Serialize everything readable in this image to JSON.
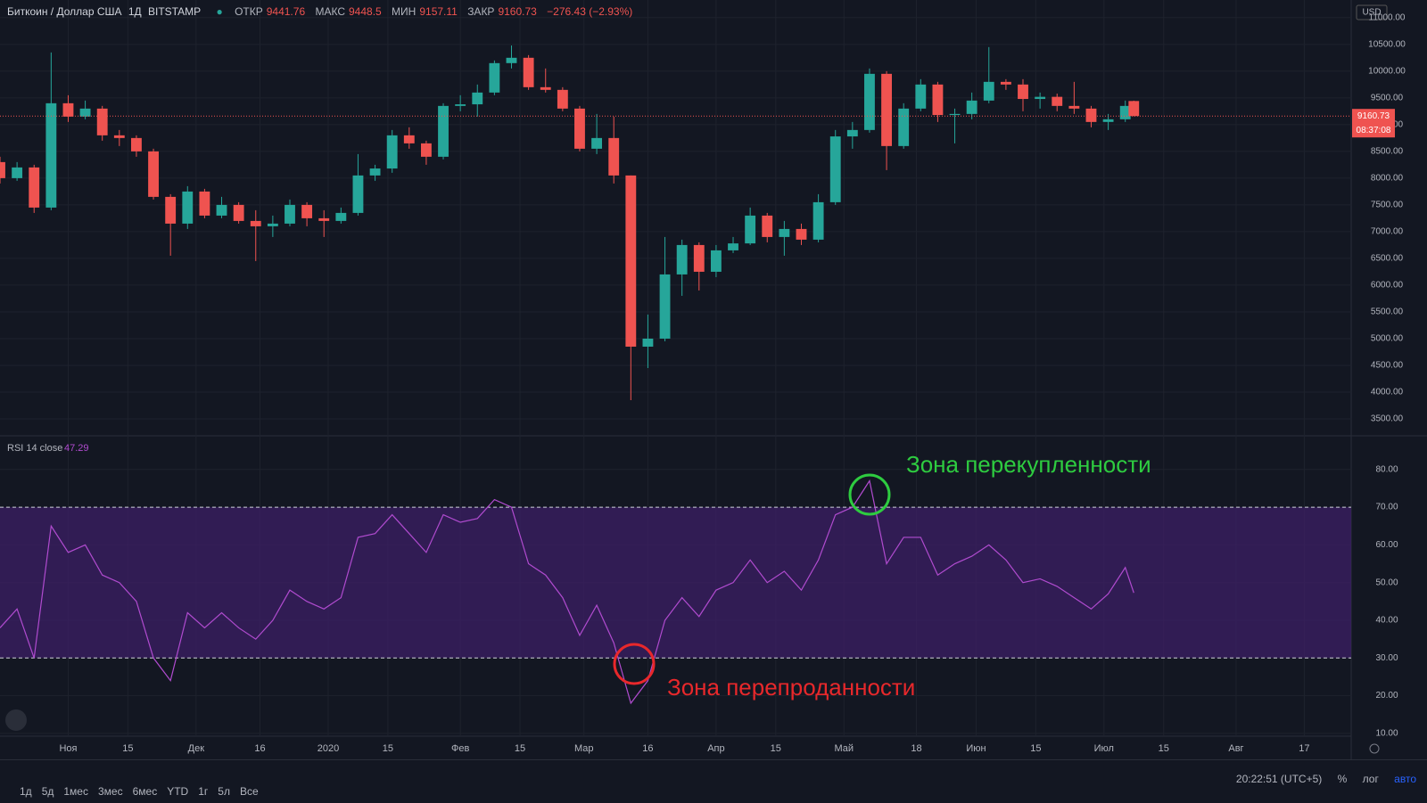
{
  "header": {
    "symbol": "Биткоин / Доллар США",
    "interval": "1Д",
    "exchange": "BITSTAMP",
    "open_label": "ОТКР",
    "high_label": "МАКС",
    "low_label": "МИН",
    "close_label": "ЗАКР",
    "change": "−276.43 (−2.93%)"
  },
  "chart_data": [
    {
      "type": "candlestick",
      "currency": "USD",
      "countdown": "08:37:08",
      "up_color": "#26a69a",
      "down_color": "#ef5350",
      "xlim": [
        "2019-10-16",
        "2020-08-28"
      ],
      "ylim": [
        3200,
        11330
      ],
      "yticks": [
        {
          "value": 3500,
          "label": "3500.00"
        },
        {
          "value": 4000,
          "label": "4000.00"
        },
        {
          "value": 4500,
          "label": "4500.00"
        },
        {
          "value": 5000,
          "label": "5000.00"
        },
        {
          "value": 5500,
          "label": "5500.00"
        },
        {
          "value": 6000,
          "label": "6000.00"
        },
        {
          "value": 6500,
          "label": "6500.00"
        },
        {
          "value": 7000,
          "label": "7000.00"
        },
        {
          "value": 7500,
          "label": "7500.00"
        },
        {
          "value": 8000,
          "label": "8000.00"
        },
        {
          "value": 8500,
          "label": "8500.00"
        },
        {
          "value": 9000,
          "label": "9000.00"
        },
        {
          "value": 9500,
          "label": "9500.00"
        },
        {
          "value": 10000,
          "label": "10000.00"
        },
        {
          "value": 10500,
          "label": "10500.00"
        },
        {
          "value": 11000,
          "label": "11000.00"
        }
      ],
      "x": [
        "2019-10-16",
        "2019-10-20",
        "2019-10-24",
        "2019-10-28",
        "2019-11-01",
        "2019-11-05",
        "2019-11-09",
        "2019-11-13",
        "2019-11-17",
        "2019-11-21",
        "2019-11-25",
        "2019-11-29",
        "2019-12-03",
        "2019-12-07",
        "2019-12-11",
        "2019-12-15",
        "2019-12-19",
        "2019-12-23",
        "2019-12-27",
        "2019-12-31",
        "2020-01-04",
        "2020-01-08",
        "2020-01-12",
        "2020-01-16",
        "2020-01-20",
        "2020-01-24",
        "2020-01-28",
        "2020-02-01",
        "2020-02-05",
        "2020-02-09",
        "2020-02-13",
        "2020-02-17",
        "2020-02-21",
        "2020-02-25",
        "2020-02-29",
        "2020-03-04",
        "2020-03-08",
        "2020-03-12",
        "2020-03-16",
        "2020-03-20",
        "2020-03-24",
        "2020-03-28",
        "2020-04-01",
        "2020-04-05",
        "2020-04-09",
        "2020-04-13",
        "2020-04-17",
        "2020-04-21",
        "2020-04-25",
        "2020-04-29",
        "2020-05-03",
        "2020-05-07",
        "2020-05-11",
        "2020-05-15",
        "2020-05-19",
        "2020-05-23",
        "2020-05-27",
        "2020-05-31",
        "2020-06-04",
        "2020-06-08",
        "2020-06-12",
        "2020-06-16",
        "2020-06-20",
        "2020-06-24",
        "2020-06-28",
        "2020-07-02",
        "2020-07-06",
        "2020-07-08"
      ],
      "open": [
        8300,
        8000,
        8200,
        7450,
        9400,
        9150,
        9300,
        8800,
        8750,
        8500,
        7650,
        7150,
        7750,
        7300,
        7500,
        7200,
        7100,
        7150,
        7500,
        7250,
        7200,
        7350,
        8050,
        8180,
        8800,
        8650,
        8400,
        9350,
        9380,
        9600,
        10150,
        10250,
        9700,
        9650,
        9300,
        8550,
        8750,
        8050,
        4850,
        5000,
        6200,
        6750,
        6250,
        6650,
        6780,
        7300,
        6900,
        7050,
        6850,
        7550,
        8780,
        8900,
        9950,
        8600,
        9300,
        9750,
        9180,
        9200,
        9450,
        9800,
        9750,
        9480,
        9520,
        9350,
        9300,
        9050,
        9100,
        9441.76
      ],
      "high": [
        8400,
        8300,
        8250,
        10350,
        9550,
        9450,
        9350,
        8900,
        8800,
        8550,
        7700,
        7850,
        7800,
        7650,
        7550,
        7400,
        7300,
        7600,
        7550,
        7400,
        7450,
        8450,
        8250,
        8900,
        8950,
        8700,
        9400,
        9550,
        9750,
        10200,
        10480,
        10300,
        10050,
        9700,
        9350,
        9200,
        9150,
        8050,
        5450,
        6900,
        6850,
        6800,
        6750,
        6900,
        7450,
        7350,
        7200,
        7150,
        7700,
        8900,
        9050,
        10050,
        10000,
        9400,
        9850,
        9800,
        9300,
        9600,
        10450,
        9850,
        9850,
        9600,
        9580,
        9800,
        9350,
        9200,
        9450,
        9448.5
      ],
      "low": [
        7900,
        7950,
        7350,
        7400,
        9050,
        9100,
        8700,
        8600,
        8400,
        7600,
        6550,
        7050,
        7250,
        7250,
        7150,
        6450,
        6900,
        7100,
        7100,
        6900,
        7150,
        7300,
        7950,
        8100,
        8550,
        8250,
        8350,
        9250,
        9150,
        9550,
        10050,
        9650,
        9600,
        9250,
        8500,
        8450,
        7900,
        3850,
        4450,
        4950,
        5800,
        5900,
        6150,
        6600,
        6750,
        6800,
        6550,
        6750,
        6800,
        7500,
        8550,
        8850,
        8150,
        8550,
        9250,
        9050,
        8650,
        9100,
        9400,
        9650,
        9250,
        9300,
        9250,
        9200,
        8950,
        8900,
        9050,
        9157.11
      ],
      "close": [
        8000,
        8200,
        7450,
        9400,
        9150,
        9300,
        8800,
        8750,
        8500,
        7650,
        7150,
        7750,
        7300,
        7500,
        7200,
        7100,
        7150,
        7500,
        7250,
        7200,
        7350,
        8050,
        8180,
        8800,
        8650,
        8400,
        9350,
        9380,
        9600,
        10150,
        10250,
        9700,
        9650,
        9300,
        8550,
        8750,
        8050,
        4850,
        5000,
        6200,
        6750,
        6250,
        6650,
        6780,
        7300,
        6900,
        7050,
        6850,
        7550,
        8780,
        8900,
        9950,
        8600,
        9300,
        9750,
        9180,
        9200,
        9450,
        9800,
        9750,
        9480,
        9520,
        9350,
        9300,
        9050,
        9100,
        9350,
        9160.73
      ]
    },
    {
      "type": "line",
      "title": "RSI 14 close",
      "color": "#b04bcf",
      "band_color": "#3c1f66",
      "hlines": [
        30,
        70
      ],
      "xlim": [
        "2019-10-16",
        "2020-08-28"
      ],
      "ylim": [
        9.5,
        88.7
      ],
      "yticks": [
        {
          "value": 10,
          "label": "10.00"
        },
        {
          "value": 20,
          "label": "20.00"
        },
        {
          "value": 30,
          "label": "30.00"
        },
        {
          "value": 40,
          "label": "40.00"
        },
        {
          "value": 50,
          "label": "50.00"
        },
        {
          "value": 60,
          "label": "60.00"
        },
        {
          "value": 70,
          "label": "70.00"
        },
        {
          "value": 80,
          "label": "80.00"
        }
      ],
      "xticks": [
        {
          "value": "2019-11-01",
          "label": "Ноя"
        },
        {
          "value": "2019-11-15",
          "label": "15"
        },
        {
          "value": "2019-12-01",
          "label": "Дек"
        },
        {
          "value": "2019-12-16",
          "label": "16"
        },
        {
          "value": "2020-01-01",
          "label": "2020"
        },
        {
          "value": "2020-01-15",
          "label": "15"
        },
        {
          "value": "2020-02-01",
          "label": "Фев"
        },
        {
          "value": "2020-02-15",
          "label": "15"
        },
        {
          "value": "2020-03-01",
          "label": "Мар"
        },
        {
          "value": "2020-03-16",
          "label": "16"
        },
        {
          "value": "2020-04-01",
          "label": "Апр"
        },
        {
          "value": "2020-04-15",
          "label": "15"
        },
        {
          "value": "2020-05-01",
          "label": "Май"
        },
        {
          "value": "2020-05-18",
          "label": "18"
        },
        {
          "value": "2020-06-01",
          "label": "Июн"
        },
        {
          "value": "2020-06-15",
          "label": "15"
        },
        {
          "value": "2020-07-01",
          "label": "Июл"
        },
        {
          "value": "2020-07-15",
          "label": "15"
        },
        {
          "value": "2020-08-01",
          "label": "Авг"
        },
        {
          "value": "2020-08-17",
          "label": "17"
        }
      ],
      "x": [
        "2019-10-16",
        "2019-10-20",
        "2019-10-24",
        "2019-10-28",
        "2019-11-01",
        "2019-11-05",
        "2019-11-09",
        "2019-11-13",
        "2019-11-17",
        "2019-11-21",
        "2019-11-25",
        "2019-11-29",
        "2019-12-03",
        "2019-12-07",
        "2019-12-11",
        "2019-12-15",
        "2019-12-19",
        "2019-12-23",
        "2019-12-27",
        "2019-12-31",
        "2020-01-04",
        "2020-01-08",
        "2020-01-12",
        "2020-01-16",
        "2020-01-20",
        "2020-01-24",
        "2020-01-28",
        "2020-02-01",
        "2020-02-05",
        "2020-02-09",
        "2020-02-13",
        "2020-02-17",
        "2020-02-21",
        "2020-02-25",
        "2020-02-29",
        "2020-03-04",
        "2020-03-08",
        "2020-03-12",
        "2020-03-16",
        "2020-03-20",
        "2020-03-24",
        "2020-03-28",
        "2020-04-01",
        "2020-04-05",
        "2020-04-09",
        "2020-04-13",
        "2020-04-17",
        "2020-04-21",
        "2020-04-25",
        "2020-04-29",
        "2020-05-03",
        "2020-05-07",
        "2020-05-11",
        "2020-05-15",
        "2020-05-19",
        "2020-05-23",
        "2020-05-27",
        "2020-05-31",
        "2020-06-04",
        "2020-06-08",
        "2020-06-12",
        "2020-06-16",
        "2020-06-20",
        "2020-06-24",
        "2020-06-28",
        "2020-07-02",
        "2020-07-06",
        "2020-07-08"
      ],
      "values": [
        38,
        43,
        30,
        65,
        58,
        60,
        52,
        50,
        45,
        30,
        24,
        42,
        38,
        42,
        38,
        35,
        40,
        48,
        45,
        43,
        46,
        62,
        63,
        68,
        63,
        58,
        68,
        66,
        67,
        72,
        70,
        55,
        52,
        46,
        36,
        44,
        34,
        18,
        24,
        40,
        46,
        41,
        48,
        50,
        56,
        50,
        53,
        48,
        56,
        68,
        70,
        77,
        55,
        62,
        62,
        52,
        55,
        57,
        60,
        56,
        50,
        51,
        49,
        46,
        43,
        47,
        54,
        47.29
      ],
      "annotations": [
        {
          "text": "Зона перекупленности",
          "color": "#2ecc40"
        },
        {
          "text": "Зона перепроданности",
          "color": "#e8282b"
        }
      ]
    }
  ],
  "toolbar": {
    "ranges": [
      "1д",
      "5д",
      "1мес",
      "3мес",
      "6мес",
      "YTD",
      "1г",
      "5л",
      "Все"
    ],
    "clock": "20:22:51 (UTC+5)",
    "percent": "%",
    "log": "лог",
    "auto": "авто"
  }
}
